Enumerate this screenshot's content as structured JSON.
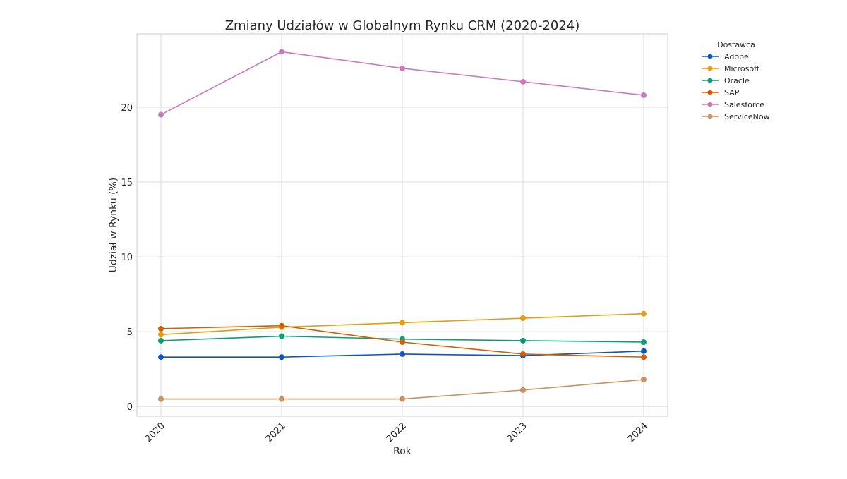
{
  "chart_data": {
    "type": "line",
    "title": "Zmiany Udziałów w Globalnym Rynku CRM (2020-2024)",
    "xlabel": "Rok",
    "ylabel": "Udział w Rynku (%)",
    "x": [
      2020,
      2021,
      2022,
      2023,
      2024
    ],
    "x_tick_labels": [
      "2020",
      "2021",
      "2022",
      "2023",
      "2024"
    ],
    "y_ticks": [
      0,
      5,
      10,
      15,
      20
    ],
    "y_tick_labels": [
      "0",
      "5",
      "10",
      "15",
      "20"
    ],
    "ylim": [
      -0.65,
      24.9
    ],
    "grid": true,
    "legend_title": "Dostawca",
    "legend_placement": "outside-top-right",
    "series": [
      {
        "name": "Adobe",
        "color": "#0b55c8",
        "values": [
          3.3,
          3.3,
          3.5,
          3.4,
          3.7
        ]
      },
      {
        "name": "Microsoft",
        "color": "#e69c0c",
        "values": [
          4.8,
          5.3,
          5.6,
          5.9,
          6.2
        ]
      },
      {
        "name": "Oracle",
        "color": "#069e73",
        "values": [
          4.4,
          4.7,
          4.5,
          4.4,
          4.3
        ]
      },
      {
        "name": "SAP",
        "color": "#d55e00",
        "values": [
          5.2,
          5.4,
          4.3,
          3.5,
          3.3
        ]
      },
      {
        "name": "Salesforce",
        "color": "#cc78bc",
        "values": [
          19.5,
          23.7,
          22.6,
          21.7,
          20.8
        ]
      },
      {
        "name": "ServiceNow",
        "color": "#ca9161",
        "values": [
          0.5,
          0.5,
          0.5,
          1.1,
          1.8
        ]
      }
    ]
  }
}
